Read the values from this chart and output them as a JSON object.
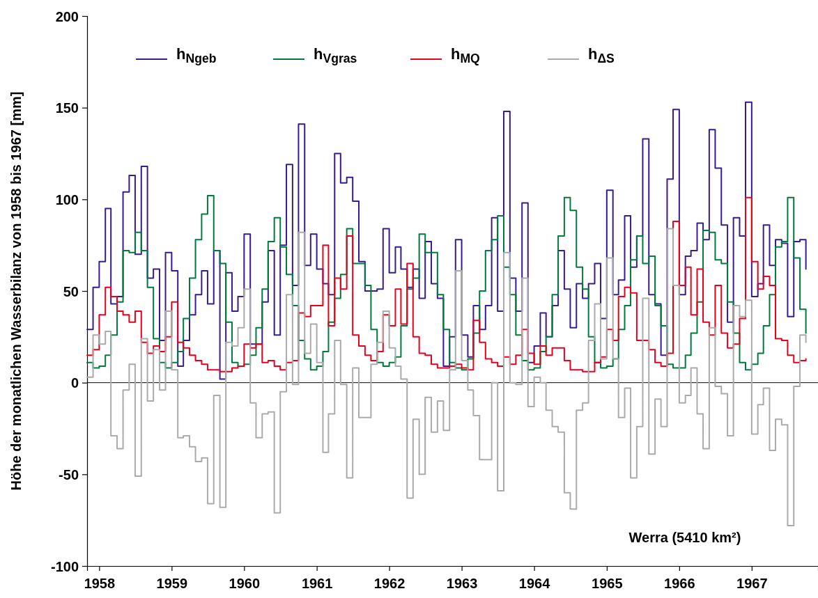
{
  "chart_data": {
    "type": "step",
    "ylabel": "Höhe der monatlichen Wasserbilanz von 1958 bis 1967 [mm]",
    "annotations": [
      "Werra (5410 km²)"
    ],
    "x": [
      "1957-11",
      "1957-12",
      "1958-01",
      "1958-02",
      "1958-03",
      "1958-04",
      "1958-05",
      "1958-06",
      "1958-07",
      "1958-08",
      "1958-09",
      "1958-10",
      "1958-11",
      "1958-12",
      "1959-01",
      "1959-02",
      "1959-03",
      "1959-04",
      "1959-05",
      "1959-06",
      "1959-07",
      "1959-08",
      "1959-09",
      "1959-10",
      "1959-11",
      "1959-12",
      "1960-01",
      "1960-02",
      "1960-03",
      "1960-04",
      "1960-05",
      "1960-06",
      "1960-07",
      "1960-08",
      "1960-09",
      "1960-10",
      "1960-11",
      "1960-12",
      "1961-01",
      "1961-02",
      "1961-03",
      "1961-04",
      "1961-05",
      "1961-06",
      "1961-07",
      "1961-08",
      "1961-09",
      "1961-10",
      "1961-11",
      "1961-12",
      "1962-01",
      "1962-02",
      "1962-03",
      "1962-04",
      "1962-05",
      "1962-06",
      "1962-07",
      "1962-08",
      "1962-09",
      "1962-10",
      "1962-11",
      "1962-12",
      "1963-01",
      "1963-02",
      "1963-03",
      "1963-04",
      "1963-05",
      "1963-06",
      "1963-07",
      "1963-08",
      "1963-09",
      "1963-10",
      "1963-11",
      "1963-12",
      "1964-01",
      "1964-02",
      "1964-03",
      "1964-04",
      "1964-05",
      "1964-06",
      "1964-07",
      "1964-08",
      "1964-09",
      "1964-10",
      "1964-11",
      "1964-12",
      "1965-01",
      "1965-02",
      "1965-03",
      "1965-04",
      "1965-05",
      "1965-06",
      "1965-07",
      "1965-08",
      "1965-09",
      "1965-10",
      "1965-11",
      "1965-12",
      "1966-01",
      "1966-02",
      "1966-03",
      "1966-04",
      "1966-05",
      "1966-06",
      "1966-07",
      "1966-08",
      "1966-09",
      "1966-10",
      "1966-11",
      "1966-12",
      "1967-01",
      "1967-02",
      "1967-03",
      "1967-04",
      "1967-05",
      "1967-06",
      "1967-07",
      "1967-08",
      "1967-09",
      "1967-10"
    ],
    "xlim": [
      "1957-11",
      "1967-12"
    ],
    "xticks": [
      {
        "value": "1958",
        "label": "1958"
      },
      {
        "value": "1959",
        "label": "1959"
      },
      {
        "value": "1960",
        "label": "1960"
      },
      {
        "value": "1961",
        "label": "1961"
      },
      {
        "value": "1962",
        "label": "1962"
      },
      {
        "value": "1963",
        "label": "1963"
      },
      {
        "value": "1964",
        "label": "1964"
      },
      {
        "value": "1965",
        "label": "1965"
      },
      {
        "value": "1966",
        "label": "1966"
      },
      {
        "value": "1967",
        "label": "1967"
      }
    ],
    "ylim": [
      -100,
      200
    ],
    "yticks": [
      -100,
      -50,
      0,
      50,
      100,
      150,
      200
    ],
    "grid": false,
    "legend": "top left",
    "line_style": "solid",
    "ref_lines": [
      {
        "axis": "y",
        "value": 0,
        "color": "#000000"
      }
    ],
    "series": [
      {
        "name": "h$_{Ngeb}$",
        "color": "#3a1a8f",
        "values": [
          29,
          52,
          66,
          95,
          43,
          47,
          104,
          113,
          70,
          118,
          57,
          62,
          23,
          71,
          61,
          9,
          23,
          37,
          48,
          61,
          43,
          72,
          2,
          60,
          39,
          47,
          81,
          21,
          21,
          44,
          72,
          26,
          75,
          119,
          53,
          141,
          64,
          81,
          62,
          54,
          48,
          125,
          109,
          112,
          99,
          66,
          50,
          50,
          51,
          84,
          60,
          74,
          62,
          52,
          62,
          46,
          77,
          54,
          46,
          9,
          25,
          78,
          26,
          14,
          42,
          29,
          42,
          90,
          39,
          148,
          57,
          39,
          98,
          11,
          20,
          38,
          25,
          42,
          72,
          51,
          30,
          54,
          46,
          54,
          65,
          35,
          105,
          48,
          56,
          91,
          63,
          80,
          133,
          48,
          43,
          15,
          111,
          149,
          48,
          69,
          72,
          87,
          78,
          138,
          117,
          86,
          33,
          90,
          80,
          153,
          47,
          54,
          86,
          64,
          78,
          76,
          36,
          77,
          78,
          62
        ]
      },
      {
        "name": "h$_{Vgras}$",
        "color": "#007a3d",
        "values": [
          11,
          8,
          9,
          15,
          26,
          44,
          72,
          71,
          82,
          72,
          52,
          24,
          11,
          8,
          11,
          17,
          35,
          57,
          78,
          92,
          102,
          72,
          65,
          33,
          11,
          9,
          10,
          15,
          30,
          51,
          77,
          90,
          74,
          59,
          42,
          23,
          13,
          7,
          9,
          17,
          33,
          46,
          59,
          84,
          65,
          65,
          53,
          29,
          11,
          9,
          11,
          14,
          31,
          51,
          57,
          81,
          71,
          71,
          48,
          29,
          11,
          8,
          7,
          13,
          27,
          50,
          72,
          78,
          91,
          63,
          48,
          26,
          12,
          7,
          8,
          17,
          25,
          48,
          80,
          101,
          94,
          63,
          51,
          25,
          11,
          8,
          9,
          13,
          29,
          42,
          67,
          80,
          65,
          69,
          42,
          31,
          10,
          8,
          8,
          15,
          27,
          44,
          83,
          82,
          67,
          65,
          44,
          27,
          11,
          7,
          10,
          16,
          31,
          48,
          74,
          77,
          101,
          68,
          40,
          27
        ]
      },
      {
        "name": "h$_{MQ}$",
        "color": "#e8001c",
        "values": [
          15,
          18,
          37,
          52,
          47,
          39,
          37,
          33,
          39,
          22,
          16,
          20,
          17,
          25,
          44,
          22,
          19,
          15,
          12,
          10,
          7,
          7,
          6,
          6,
          8,
          9,
          21,
          19,
          21,
          11,
          12,
          9,
          7,
          11,
          12,
          38,
          36,
          42,
          42,
          75,
          31,
          57,
          51,
          80,
          26,
          20,
          15,
          12,
          17,
          37,
          31,
          51,
          32,
          65,
          25,
          16,
          15,
          10,
          8,
          8,
          9,
          10,
          8,
          7,
          34,
          22,
          13,
          11,
          9,
          14,
          10,
          15,
          29,
          16,
          10,
          20,
          15,
          19,
          19,
          12,
          7,
          7,
          6,
          6,
          11,
          14,
          29,
          23,
          47,
          52,
          49,
          23,
          23,
          18,
          11,
          9,
          16,
          88,
          53,
          63,
          37,
          62,
          33,
          26,
          53,
          27,
          19,
          21,
          35,
          101,
          66,
          51,
          58,
          53,
          24,
          23,
          15,
          11,
          12,
          13
        ]
      },
      {
        "name": "h$_{ΔS}$",
        "color": "#aaaaaa",
        "values": [
          3,
          26,
          21,
          28,
          -29,
          -36,
          -4,
          10,
          -51,
          24,
          -10,
          18,
          -4,
          39,
          7,
          -30,
          -29,
          -35,
          -43,
          -41,
          -66,
          -7,
          -68,
          22,
          20,
          30,
          51,
          -11,
          -30,
          -17,
          -16,
          -71,
          -5,
          48,
          -1,
          82,
          16,
          32,
          11,
          -38,
          -17,
          23,
          -1,
          -52,
          8,
          -19,
          -19,
          10,
          22,
          39,
          19,
          9,
          2,
          -63,
          -20,
          -50,
          -8,
          -27,
          -10,
          -26,
          7,
          61,
          12,
          -4,
          -18,
          -42,
          -42,
          0,
          -59,
          71,
          0,
          -1,
          57,
          -13,
          3,
          0,
          -15,
          -24,
          -27,
          -60,
          -69,
          -15,
          -11,
          23,
          43,
          13,
          68,
          13,
          -19,
          -3,
          -52,
          -24,
          46,
          -39,
          -9,
          -24,
          84,
          53,
          -11,
          -7,
          8,
          -17,
          -36,
          30,
          -2,
          -6,
          -29,
          42,
          36,
          45,
          -28,
          -12,
          -3,
          -37,
          -20,
          -23,
          -78,
          -2,
          26,
          22
        ]
      }
    ]
  }
}
